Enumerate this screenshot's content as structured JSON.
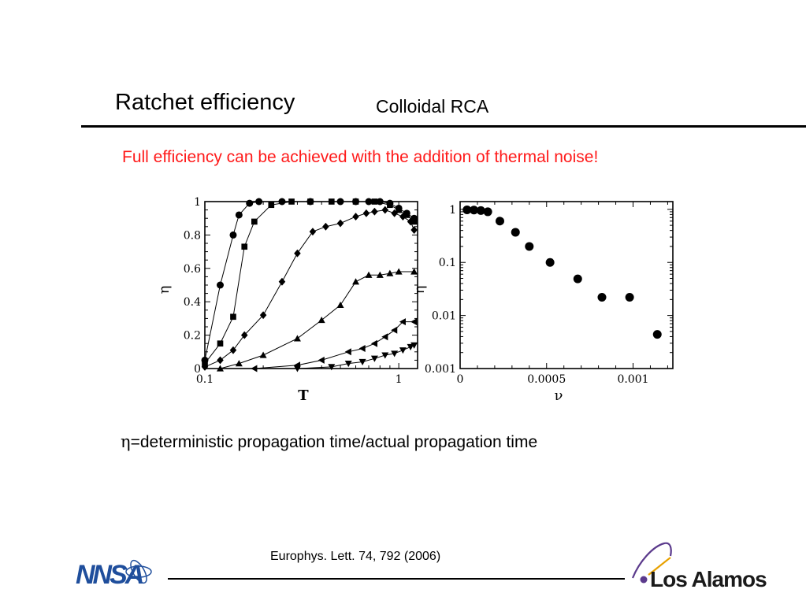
{
  "slide": {
    "title": "Ratchet efficiency",
    "subtitle": "Colloidal RCA",
    "highlight": "Full efficiency can be achieved with the addition of thermal noise!",
    "definition_symbol": "η",
    "definition_text": "=deterministic propagation time/actual propagation time",
    "citation": "Europhys. Lett. 74, 792 (2006)",
    "colors": {
      "highlight": "#ff1a1a",
      "text": "#000000",
      "logo_blue": "#1f4e9c",
      "logo_purple": "#5b3a8c"
    }
  },
  "logos": {
    "left": {
      "text": "NNSA",
      "icon": "nnsa-logo"
    },
    "right": {
      "text": "Los Alamos",
      "icon": "los-alamos-logo"
    }
  },
  "chart_data": [
    {
      "type": "line",
      "xlabel": "T",
      "ylabel": "η",
      "xscale": "log",
      "xlim": [
        0.1,
        1.25
      ],
      "ylim": [
        0,
        1
      ],
      "xticks": [
        {
          "v": 0.1,
          "label": "0.1"
        },
        {
          "v": 1,
          "label": "1"
        }
      ],
      "yticks": [
        {
          "v": 0,
          "label": "0"
        },
        {
          "v": 0.2,
          "label": "0.2"
        },
        {
          "v": 0.4,
          "label": "0.4"
        },
        {
          "v": 0.6,
          "label": "0.6"
        },
        {
          "v": 0.8,
          "label": "0.8"
        },
        {
          "v": 1,
          "label": "1"
        }
      ],
      "grid": false,
      "series": [
        {
          "marker": "circle",
          "x": [
            0.1,
            0.12,
            0.14,
            0.15,
            0.17,
            0.19,
            0.25,
            0.35,
            0.5,
            0.6,
            0.7,
            0.8,
            0.9,
            1.0,
            1.1,
            1.2
          ],
          "y": [
            0.05,
            0.5,
            0.8,
            0.92,
            0.99,
            1.0,
            1.0,
            1.0,
            1.0,
            1.0,
            1.0,
            1.0,
            0.99,
            0.96,
            0.93,
            0.9
          ]
        },
        {
          "marker": "square",
          "x": [
            0.1,
            0.12,
            0.14,
            0.16,
            0.18,
            0.22,
            0.28,
            0.35,
            0.45,
            0.6,
            0.75,
            0.9,
            1.0,
            1.1,
            1.2
          ],
          "y": [
            0.03,
            0.15,
            0.31,
            0.73,
            0.88,
            0.98,
            1.0,
            1.0,
            1.0,
            1.0,
            1.0,
            0.98,
            0.95,
            0.92,
            0.88
          ]
        },
        {
          "marker": "diamond",
          "x": [
            0.1,
            0.12,
            0.14,
            0.16,
            0.2,
            0.25,
            0.3,
            0.36,
            0.42,
            0.5,
            0.6,
            0.68,
            0.75,
            0.85,
            0.95,
            1.05,
            1.15,
            1.2
          ],
          "y": [
            0.01,
            0.05,
            0.11,
            0.2,
            0.32,
            0.52,
            0.69,
            0.82,
            0.85,
            0.87,
            0.91,
            0.93,
            0.94,
            0.95,
            0.93,
            0.91,
            0.88,
            0.83
          ]
        },
        {
          "marker": "triangle-up",
          "x": [
            0.12,
            0.15,
            0.2,
            0.3,
            0.4,
            0.5,
            0.6,
            0.7,
            0.8,
            0.9,
            1.0,
            1.2
          ],
          "y": [
            0.0,
            0.03,
            0.08,
            0.18,
            0.29,
            0.38,
            0.52,
            0.56,
            0.56,
            0.57,
            0.58,
            0.58
          ]
        },
        {
          "marker": "triangle-left",
          "x": [
            0.18,
            0.3,
            0.4,
            0.55,
            0.65,
            0.75,
            0.85,
            0.95,
            1.05,
            1.2
          ],
          "y": [
            0.0,
            0.02,
            0.05,
            0.1,
            0.12,
            0.15,
            0.19,
            0.23,
            0.28,
            0.28
          ]
        },
        {
          "marker": "triangle-down",
          "x": [
            0.3,
            0.45,
            0.55,
            0.65,
            0.75,
            0.85,
            0.95,
            1.05,
            1.15,
            1.2
          ],
          "y": [
            0.0,
            0.01,
            0.03,
            0.04,
            0.06,
            0.08,
            0.09,
            0.11,
            0.13,
            0.14
          ]
        }
      ]
    },
    {
      "type": "scatter",
      "xlabel": "ν",
      "ylabel": "η",
      "yscale": "log",
      "xlim": [
        0,
        0.00123
      ],
      "ylim": [
        0.001,
        1.4
      ],
      "xticks": [
        {
          "v": 0,
          "label": "0"
        },
        {
          "v": 0.0005,
          "label": "0.0005"
        },
        {
          "v": 0.001,
          "label": "0.001"
        }
      ],
      "yticks": [
        {
          "v": 0.001,
          "label": "0.001"
        },
        {
          "v": 0.01,
          "label": "0.01"
        },
        {
          "v": 0.1,
          "label": "0.1"
        },
        {
          "v": 1,
          "label": "1"
        }
      ],
      "grid": false,
      "series": [
        {
          "marker": "circle",
          "x": [
            4e-05,
            8e-05,
            0.00012,
            0.00016,
            0.00023,
            0.00032,
            0.0004,
            0.00052,
            0.00068,
            0.00082,
            0.00098,
            0.00114
          ],
          "y": [
            0.98,
            0.97,
            0.95,
            0.9,
            0.6,
            0.37,
            0.2,
            0.1,
            0.049,
            0.022,
            0.022,
            0.0044
          ]
        }
      ]
    }
  ]
}
